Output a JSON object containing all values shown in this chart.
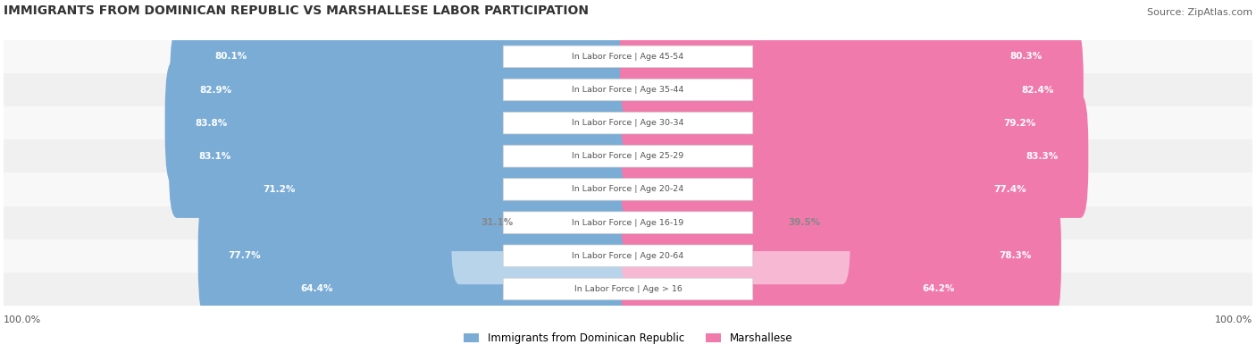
{
  "title": "IMMIGRANTS FROM DOMINICAN REPUBLIC VS MARSHALLESE LABOR PARTICIPATION",
  "source": "Source: ZipAtlas.com",
  "categories": [
    "In Labor Force | Age > 16",
    "In Labor Force | Age 20-64",
    "In Labor Force | Age 16-19",
    "In Labor Force | Age 20-24",
    "In Labor Force | Age 25-29",
    "In Labor Force | Age 30-34",
    "In Labor Force | Age 35-44",
    "In Labor Force | Age 45-54"
  ],
  "dominican_values": [
    64.4,
    77.7,
    31.1,
    71.2,
    83.1,
    83.8,
    82.9,
    80.1
  ],
  "marshallese_values": [
    64.2,
    78.3,
    39.5,
    77.4,
    83.3,
    79.2,
    82.4,
    80.3
  ],
  "dominican_color": "#7aacd6",
  "dominican_color_light": "#b8d4ea",
  "marshallese_color": "#f07aab",
  "marshallese_color_light": "#f7b8d3",
  "bar_bg_color": "#e8e8e8",
  "row_bg_colors": [
    "#f0f0f0",
    "#f8f8f8"
  ],
  "label_color_dark": "#555555",
  "label_color_white": "#ffffff",
  "center_label_color": "#666666",
  "max_value": 100.0,
  "legend_label_dominican": "Immigrants from Dominican Republic",
  "legend_label_marshallese": "Marshallese",
  "bottom_left_label": "100.0%",
  "bottom_right_label": "100.0%"
}
